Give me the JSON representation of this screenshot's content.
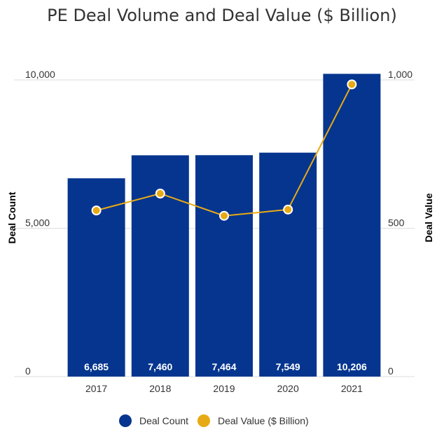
{
  "colors": {
    "bar": "#05358F",
    "line": "#E8AA14",
    "grid": "#dddddd",
    "text": "#333333",
    "bar_label": "#ffffff"
  },
  "chart_data": {
    "type": "bar",
    "title": "PE Deal Volume and Deal Value ($ Billion)",
    "categories": [
      "2017",
      "2018",
      "2019",
      "2020",
      "2021"
    ],
    "ylabel": "Deal Count",
    "y2label": "Deal Value",
    "ylim": [
      0,
      10000
    ],
    "y2lim": [
      0,
      1000
    ],
    "yticks": [
      "0",
      "5,000",
      "10,000"
    ],
    "y2ticks": [
      "0",
      "500",
      "1,000"
    ],
    "grid": true,
    "legend_position": "bottom-center",
    "series": [
      {
        "name": "Deal Count",
        "type": "bar",
        "axis": "left",
        "values": [
          6685,
          7460,
          7464,
          7549,
          10206
        ],
        "labels": [
          "6,685",
          "7,460",
          "7,464",
          "7,549",
          "10,206"
        ]
      },
      {
        "name": "Deal Value ($ Billion)",
        "type": "line",
        "axis": "right",
        "values": [
          560,
          617,
          542,
          563,
          985
        ]
      }
    ]
  }
}
